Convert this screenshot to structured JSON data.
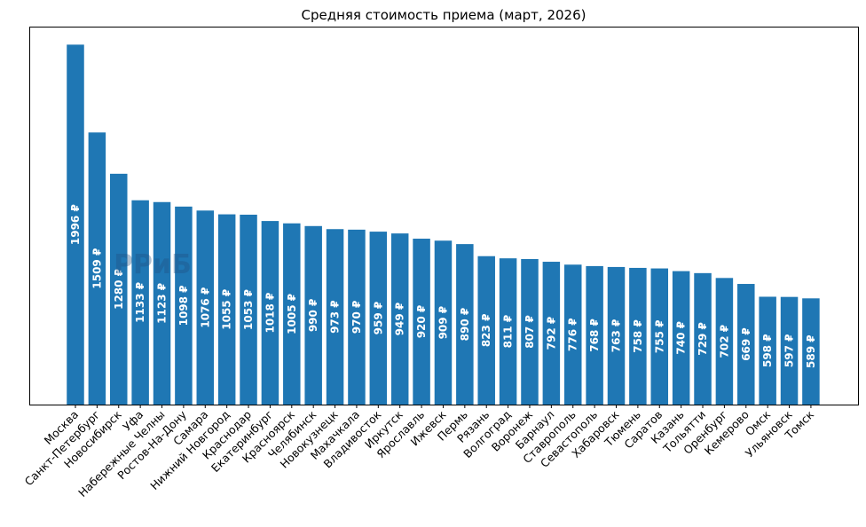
{
  "chart_data": {
    "type": "bar",
    "title": "Средняя стоимость приема (март, 2026)",
    "xlabel": "",
    "ylabel": "",
    "categories": [
      "Москва",
      "Санкт-Петербург",
      "Новосибирск",
      "Уфа",
      "Набережные Челны",
      "Ростов-На-Дону",
      "Самара",
      "Нижний Новгород",
      "Краснодар",
      "Екатеринбург",
      "Красноярск",
      "Челябинск",
      "Новокузнецк",
      "Махачкала",
      "Владивосток",
      "Иркутск",
      "Ярославль",
      "Ижевск",
      "Пермь",
      "Рязань",
      "Волгоград",
      "Воронеж",
      "Барнаул",
      "Ставрополь",
      "Севастополь",
      "Хабаровск",
      "Тюмень",
      "Саратов",
      "Казань",
      "Тольятти",
      "Оренбург",
      "Кемерово",
      "Омск",
      "Ульяновск",
      "Томск"
    ],
    "values": [
      1996,
      1509,
      1280,
      1133,
      1123,
      1098,
      1076,
      1055,
      1053,
      1018,
      1005,
      990,
      973,
      970,
      959,
      949,
      920,
      909,
      890,
      823,
      811,
      807,
      792,
      776,
      768,
      763,
      758,
      755,
      740,
      729,
      702,
      669,
      598,
      597,
      589
    ],
    "value_suffix": " ₽",
    "ylim": [
      0,
      2096
    ],
    "y_ticks_visible": false,
    "grid": false,
    "bar_color": "#1f77b4",
    "label_color": "#ffffff",
    "watermark": "РРиБ"
  }
}
